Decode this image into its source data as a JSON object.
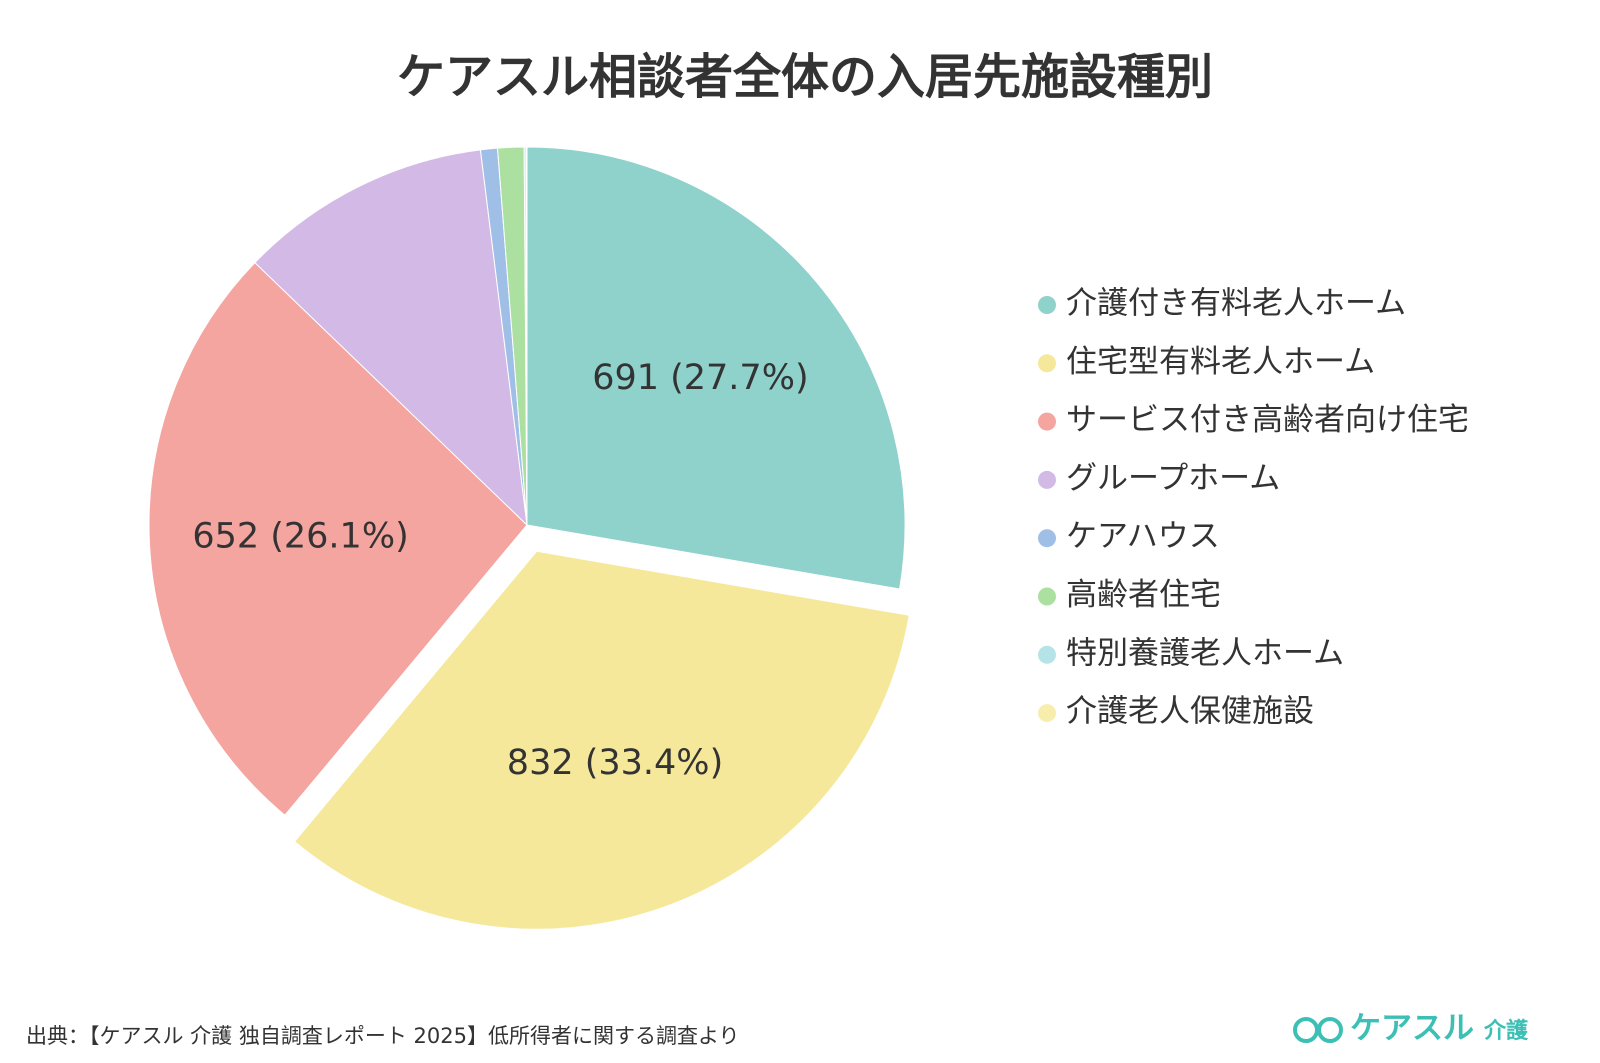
{
  "chart_data": {
    "type": "pie",
    "title": "ケアスル相談者全体の入居先施設種別",
    "categories": [
      "介護付き有料老人ホーム",
      "住宅型有料老人ホーム",
      "サービス付き高齢者向け住宅",
      "グループホーム",
      "ケアハウス",
      "高齢者住宅",
      "特別養護老人ホーム",
      "介護老人保健施設"
    ],
    "values": [
      691,
      832,
      652,
      270,
      18,
      28,
      2,
      1
    ],
    "value_labels": [
      "691 (27.7%)",
      "832 (33.4%)",
      "652 (26.1%)",
      null,
      null,
      null,
      null,
      null
    ],
    "colors": [
      "#8fd1cb",
      "#f6e89b",
      "#f5a5a0",
      "#d3b9e6",
      "#a0bfe6",
      "#ace0a0",
      "#b5e4e8",
      "#f7eeae"
    ],
    "explode": [
      false,
      true,
      false,
      false,
      false,
      false,
      false,
      false
    ],
    "legend": "right"
  },
  "source": "出典：【ケアスル 介護 独自調査レポート 2025】低所得者に関する調査より",
  "logo": {
    "brand": "ケアスル",
    "sub": "介護"
  }
}
